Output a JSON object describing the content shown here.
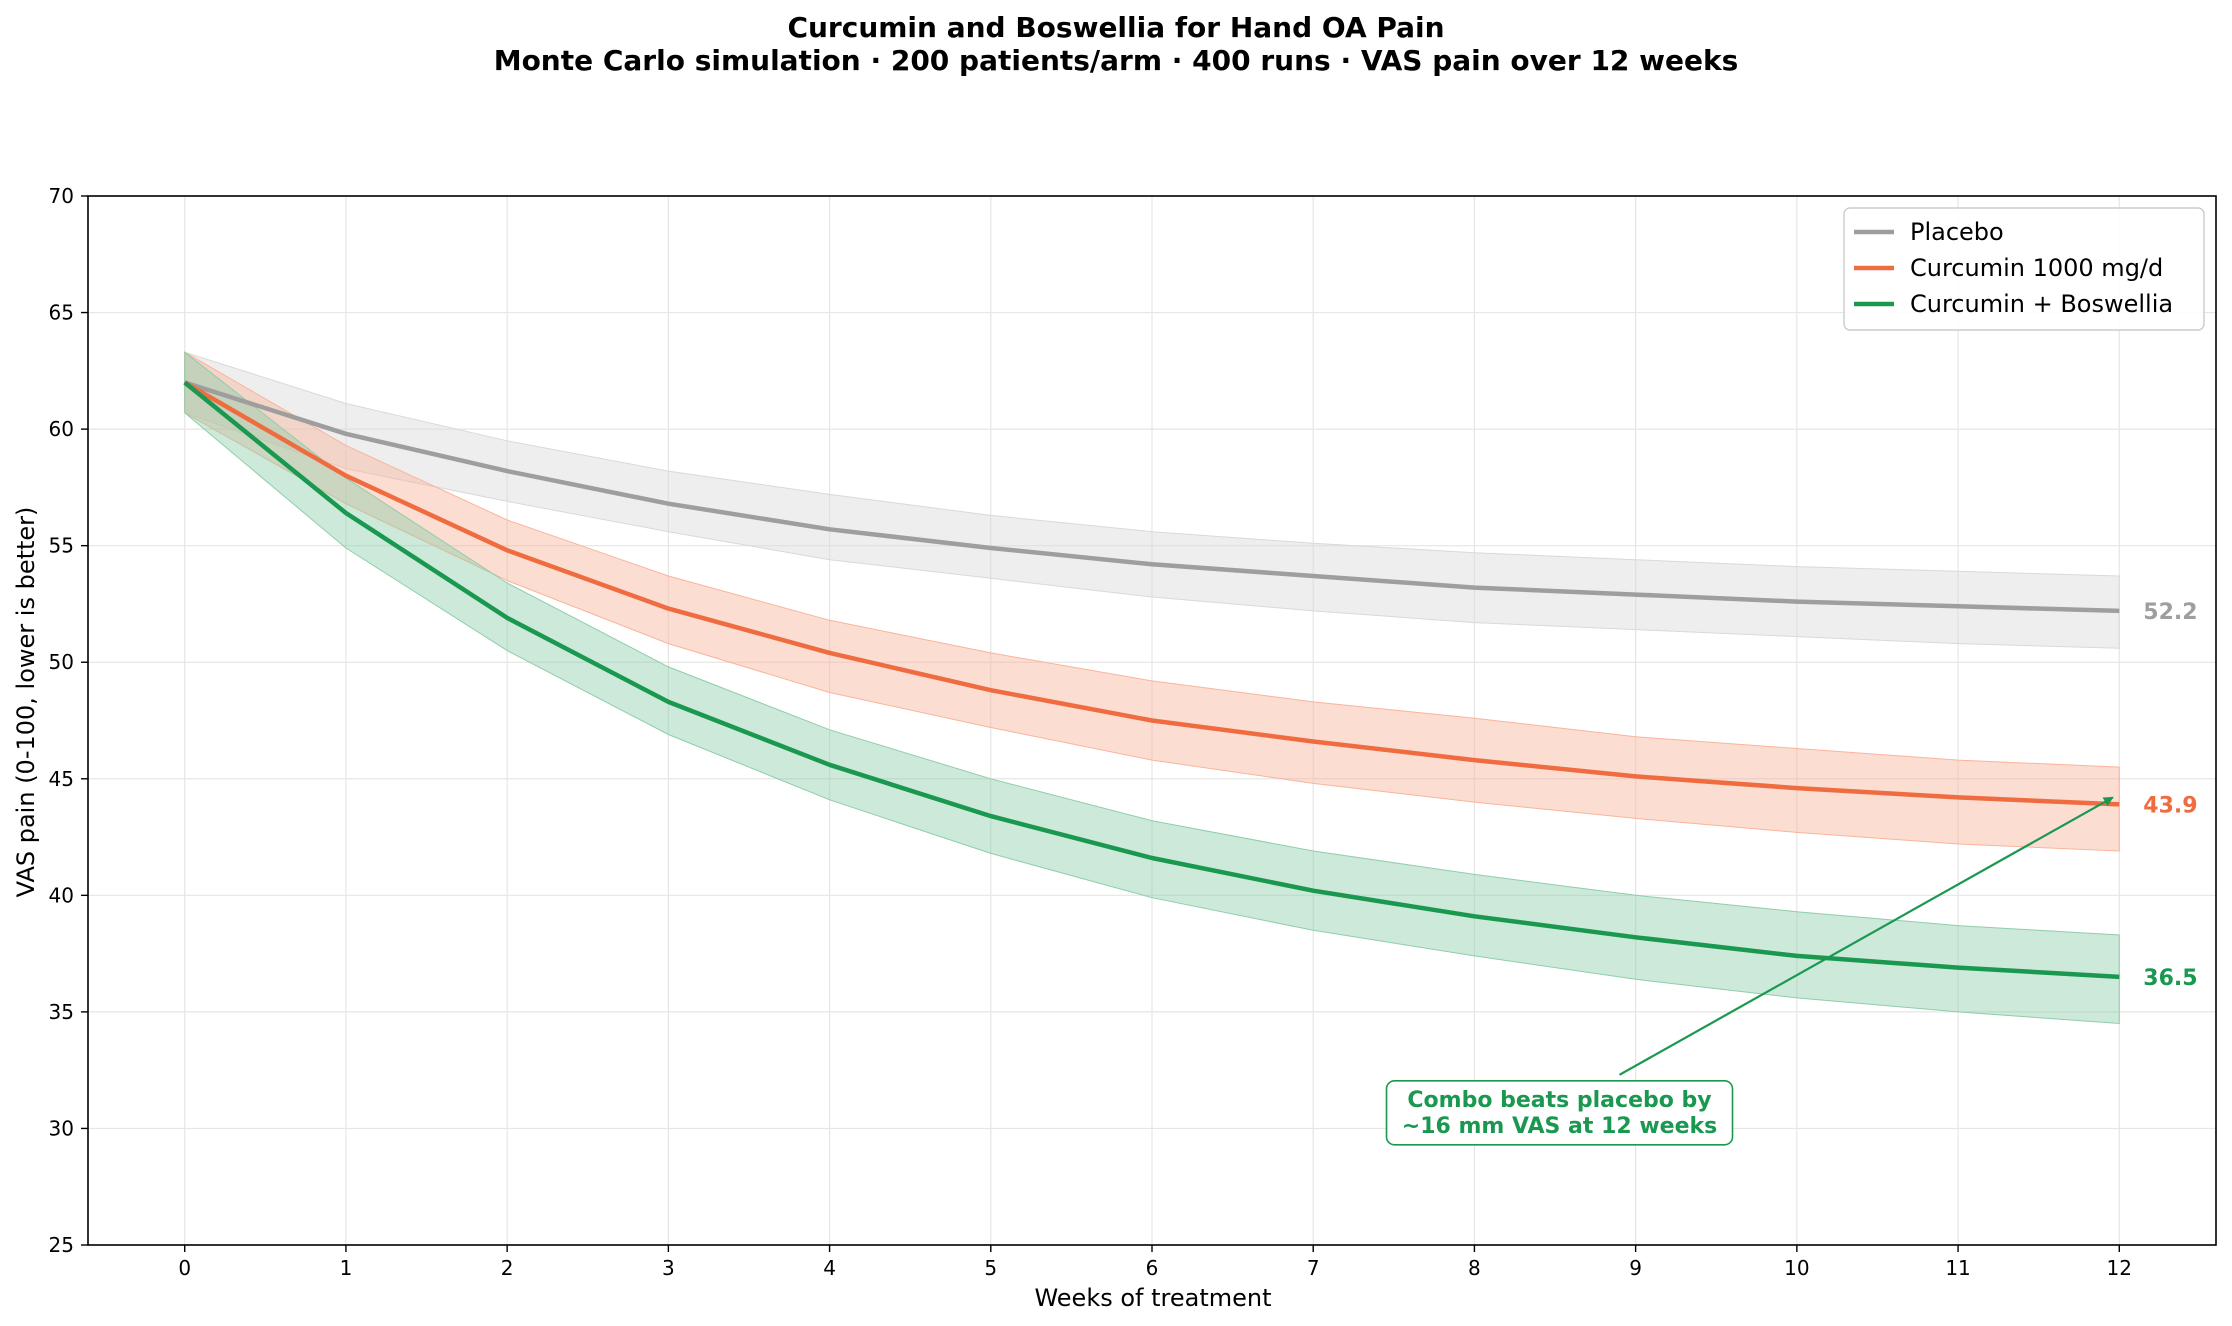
{
  "chart_data": {
    "type": "line",
    "title": "Curcumin and Boswellia for Hand OA Pain",
    "subtitle": "Monte Carlo simulation · 200 patients/arm · 400 runs · VAS pain over 12 weeks",
    "xlabel": "Weeks of treatment",
    "ylabel": "VAS pain (0-100, lower is better)",
    "x": [
      0,
      1,
      2,
      3,
      4,
      5,
      6,
      7,
      8,
      9,
      10,
      11,
      12
    ],
    "xlim": [
      -0.6,
      12.6
    ],
    "ylim": [
      25,
      70
    ],
    "xticks": [
      "0",
      "1",
      "2",
      "3",
      "4",
      "5",
      "6",
      "7",
      "8",
      "9",
      "10",
      "11",
      "12"
    ],
    "yticks": [
      "25",
      "30",
      "35",
      "40",
      "45",
      "50",
      "55",
      "60",
      "65",
      "70"
    ],
    "grid": true,
    "legend_position": "top-right",
    "series": [
      {
        "name": "Placebo",
        "color": "#9e9e9e",
        "band_color": "#d9d9d9",
        "values": [
          62.0,
          59.8,
          58.2,
          56.8,
          55.7,
          54.9,
          54.2,
          53.7,
          53.2,
          52.9,
          52.6,
          52.4,
          52.2
        ],
        "lower": [
          60.7,
          58.3,
          56.9,
          55.6,
          54.4,
          53.6,
          52.8,
          52.2,
          51.7,
          51.4,
          51.1,
          50.8,
          50.6
        ],
        "upper": [
          63.3,
          61.1,
          59.5,
          58.2,
          57.2,
          56.3,
          55.6,
          55.1,
          54.7,
          54.4,
          54.1,
          53.9,
          53.7
        ],
        "end_label": "52.2"
      },
      {
        "name": "Curcumin 1000 mg/d",
        "color": "#ef6c40",
        "band_color": "#f9b49c",
        "values": [
          62.0,
          58.0,
          54.8,
          52.3,
          50.4,
          48.8,
          47.5,
          46.6,
          45.8,
          45.1,
          44.6,
          44.2,
          43.9
        ],
        "lower": [
          60.7,
          56.8,
          53.5,
          50.8,
          48.7,
          47.2,
          45.8,
          44.8,
          44.0,
          43.3,
          42.7,
          42.2,
          41.9
        ],
        "upper": [
          63.3,
          59.3,
          56.1,
          53.7,
          51.8,
          50.4,
          49.2,
          48.3,
          47.6,
          46.8,
          46.3,
          45.8,
          45.5
        ],
        "end_label": "43.9"
      },
      {
        "name": "Curcumin + Boswellia",
        "color": "#1a9850",
        "band_color": "#8fceaa",
        "values": [
          62.0,
          56.4,
          51.9,
          48.3,
          45.6,
          43.4,
          41.6,
          40.2,
          39.1,
          38.2,
          37.4,
          36.9,
          36.5
        ],
        "lower": [
          60.7,
          54.9,
          50.5,
          46.9,
          44.1,
          41.8,
          39.9,
          38.5,
          37.4,
          36.4,
          35.6,
          35.0,
          34.5
        ],
        "upper": [
          63.3,
          57.9,
          53.4,
          49.8,
          47.1,
          45.0,
          43.2,
          41.9,
          40.9,
          40.0,
          39.3,
          38.7,
          38.3
        ],
        "end_label": "36.5"
      }
    ],
    "annotation": {
      "lines": [
        "Combo beats placebo by",
        "~16 mm VAS at 12 weeks"
      ],
      "color": "#1a9850",
      "arrow_from": [
        8.9,
        32.3
      ],
      "arrow_to": [
        11.96,
        44.2
      ]
    }
  }
}
